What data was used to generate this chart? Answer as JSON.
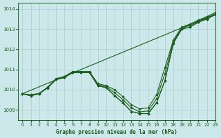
{
  "xlabel": "Graphe pression niveau de la mer (hPa)",
  "bg_color": "#cce8ea",
  "grid_color": "#aacccc",
  "line_color": "#1a5c1a",
  "xlim": [
    -0.5,
    23
  ],
  "ylim": [
    1008.5,
    1014.3
  ],
  "yticks": [
    1009,
    1010,
    1011,
    1012,
    1013,
    1014
  ],
  "xticks": [
    0,
    1,
    2,
    3,
    4,
    5,
    6,
    7,
    8,
    9,
    10,
    11,
    12,
    13,
    14,
    15,
    16,
    17,
    18,
    19,
    20,
    21,
    22,
    23
  ],
  "series": [
    {
      "y": [
        1009.8,
        1009.7,
        1009.8,
        1010.1,
        1010.5,
        1010.6,
        1010.85,
        1010.85,
        1010.85,
        1010.2,
        1010.1,
        1009.7,
        1009.35,
        1008.92,
        1008.82,
        1008.82,
        1009.35,
        1010.45,
        1012.3,
        1013.0,
        1013.1,
        1013.35,
        1013.5,
        1013.72
      ],
      "marker": true
    },
    {
      "y": [
        1009.8,
        1009.7,
        1009.8,
        1010.1,
        1010.5,
        1010.6,
        1010.85,
        1010.85,
        1010.85,
        1010.2,
        1010.1,
        1009.7,
        1009.35,
        1008.92,
        1008.82,
        1008.82,
        1009.35,
        1010.45,
        1012.3,
        1013.0,
        1013.1,
        1013.35,
        1013.5,
        1013.72
      ],
      "marker": true
    },
    {
      "y": [
        1009.8,
        1009.75,
        1009.82,
        1010.12,
        1010.55,
        1010.65,
        1010.9,
        1010.9,
        1010.9,
        1010.3,
        1010.2,
        1010.0,
        1009.65,
        1009.25,
        1009.05,
        1009.1,
        1009.75,
        1011.1,
        1012.45,
        1013.1,
        1013.25,
        1013.45,
        1013.62,
        1013.82
      ],
      "marker": true
    },
    {
      "y": [
        1009.8,
        1009.73,
        1009.8,
        1010.08,
        1010.52,
        1010.62,
        1010.87,
        1010.87,
        1010.87,
        1010.25,
        1010.15,
        1009.85,
        1009.5,
        1009.1,
        1008.9,
        1008.95,
        1009.55,
        1010.8,
        1012.38,
        1013.05,
        1013.18,
        1013.38,
        1013.55,
        1013.75
      ],
      "marker": true
    },
    {
      "y": [
        1009.8,
        1013.75
      ],
      "x": [
        0,
        23
      ],
      "marker": false,
      "straight": true
    }
  ]
}
